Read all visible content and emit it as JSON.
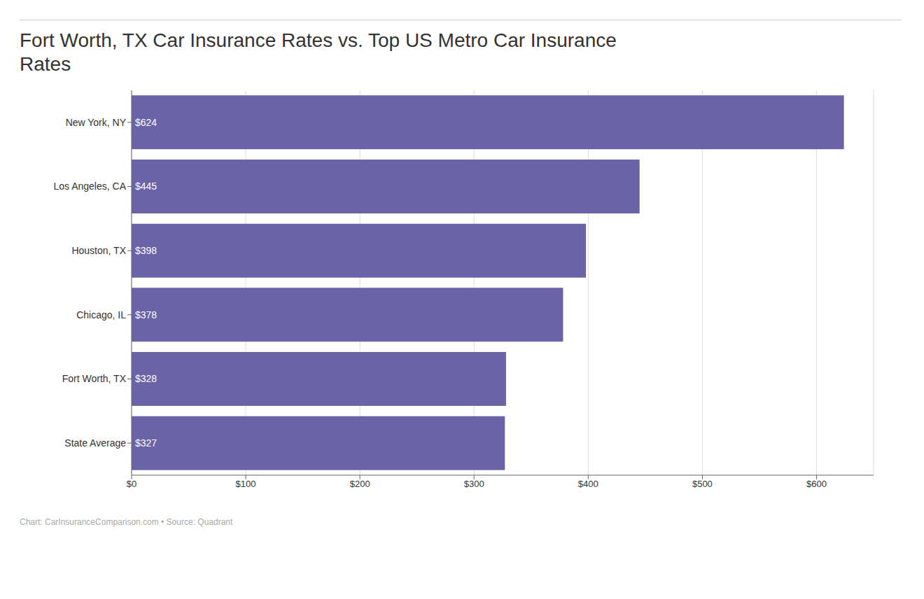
{
  "chart_data": {
    "type": "bar",
    "orientation": "horizontal",
    "title": "Fort Worth, TX Car Insurance Rates vs. Top US Metro Car Insurance\nRates",
    "caption": "Chart: CarInsuranceComparison.com • Source: Quadrant",
    "categories": [
      "State Average",
      "Fort Worth, TX",
      "Chicago, IL",
      "Houston, TX",
      "Los Angeles, CA",
      "New York, NY"
    ],
    "values": [
      327,
      328,
      378,
      398,
      445,
      624
    ],
    "value_labels": [
      "$327",
      "$328",
      "$378",
      "$398",
      "$445",
      "$624"
    ],
    "data_labels": true,
    "color": "#6b63a8",
    "xlim": [
      0,
      650
    ],
    "xticks": [
      {
        "value": 0,
        "label": "$0"
      },
      {
        "value": 100,
        "label": "$100"
      },
      {
        "value": 200,
        "label": "$200"
      },
      {
        "value": 300,
        "label": "$300"
      },
      {
        "value": 400,
        "label": "$400"
      },
      {
        "value": 500,
        "label": "$500"
      },
      {
        "value": 600,
        "label": "$600"
      }
    ],
    "grid": true
  }
}
